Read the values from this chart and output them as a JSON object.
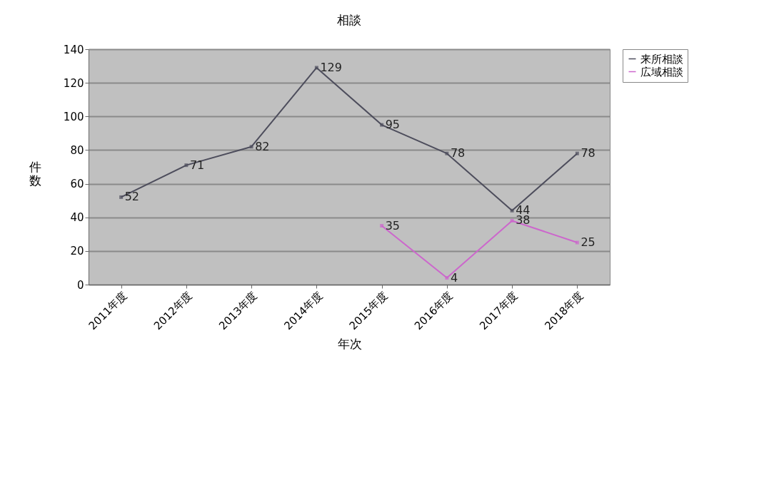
{
  "chart_data": {
    "type": "line",
    "title": "相談",
    "xlabel": "年次",
    "ylabel": "件数",
    "categories": [
      "2011年度",
      "2012年度",
      "2013年度",
      "2014年度",
      "2015年度",
      "2016年度",
      "2017年度",
      "2018年度"
    ],
    "series": [
      {
        "name": "来所相談",
        "color": "#4d4d5c",
        "values": [
          52,
          71,
          82,
          129,
          95,
          78,
          44,
          78
        ]
      },
      {
        "name": "広域相談",
        "color": "#cc66cc",
        "values": [
          null,
          null,
          null,
          null,
          35,
          4,
          38,
          25
        ]
      }
    ],
    "ylim": [
      0,
      140
    ],
    "yticks": [
      0,
      20,
      40,
      60,
      80,
      100,
      120,
      140
    ],
    "grid": "y",
    "legend": "right",
    "marker": "square",
    "line_style": "solid",
    "data_labels": true
  }
}
